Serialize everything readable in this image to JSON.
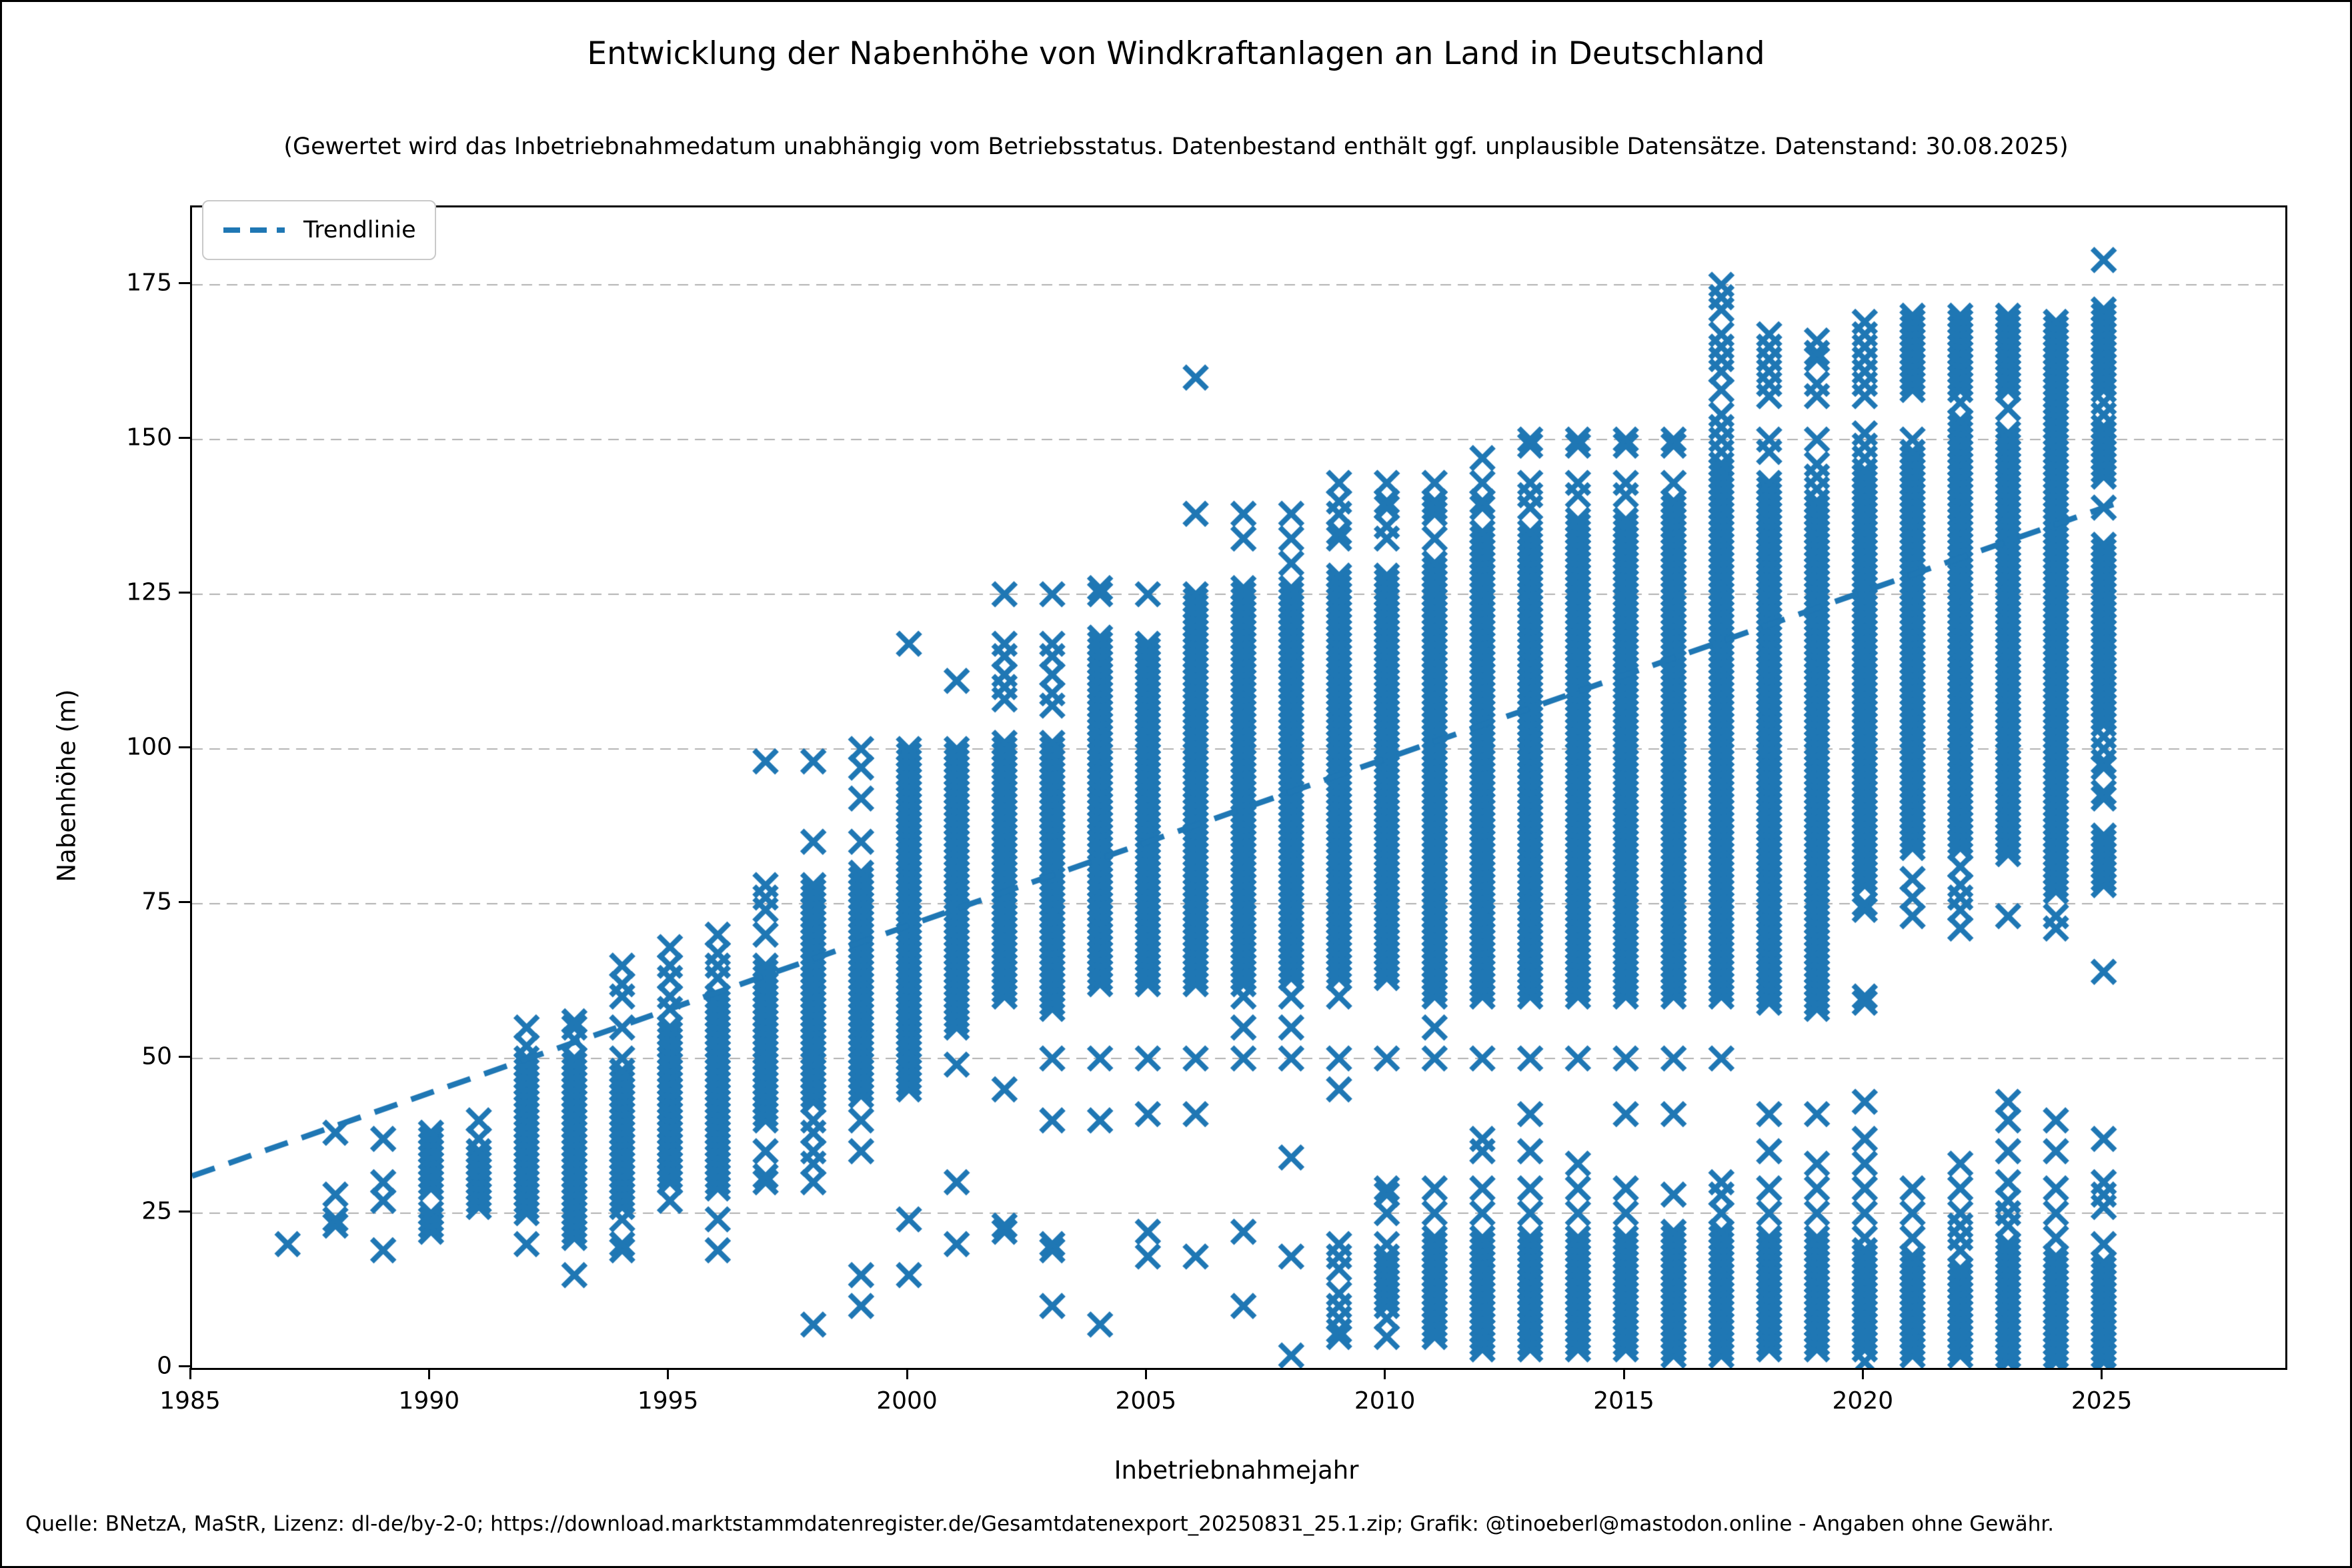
{
  "chart_data": {
    "type": "scatter",
    "title": "Entwicklung der Nabenhöhe von Windkraftanlagen an Land in Deutschland",
    "subtitle": "(Gewertet wird das Inbetriebnahmedatum unabhängig vom Betriebsstatus. Datenbestand enthält ggf. unplausible Datensätze. Datenstand: 30.08.2025)",
    "xlabel": "Inbetriebnahmejahr",
    "ylabel": "Nabenhöhe (m)",
    "marker": "x",
    "marker_color": "#1f77b4",
    "grid_color": "#b0b0b0",
    "grid": "horizontal-dashed",
    "xlim": [
      1985,
      2028.8
    ],
    "ylim": [
      0,
      187.5
    ],
    "xticks": [
      1985,
      1990,
      1995,
      2000,
      2005,
      2010,
      2015,
      2020,
      2025
    ],
    "yticks": [
      0,
      25,
      50,
      75,
      100,
      125,
      150,
      175
    ],
    "legend": {
      "label": "Trendlinie",
      "position": "upper-left",
      "style": "dashed"
    },
    "trendline": {
      "x": [
        1985,
        2025.3
      ],
      "y": [
        31,
        139.8
      ],
      "style": "dashed"
    },
    "series_note": "Per installation year: 'points' are individual hub heights (m); 'bands' are dense overplotted ranges [min,max] of hub heights read from the chart, plotted at band_step spacing.",
    "band_step": 1,
    "series": [
      {
        "year": 1987,
        "bands": [],
        "points": [
          20
        ]
      },
      {
        "year": 1988,
        "bands": [],
        "points": [
          23,
          24,
          28,
          38
        ]
      },
      {
        "year": 1989,
        "bands": [],
        "points": [
          19,
          27,
          30,
          37
        ]
      },
      {
        "year": 1990,
        "bands": [
          [
            29,
            38
          ]
        ],
        "points": [
          22,
          23,
          24,
          25
        ]
      },
      {
        "year": 1991,
        "bands": [
          [
            26,
            35
          ]
        ],
        "points": [
          37,
          40
        ]
      },
      {
        "year": 1992,
        "bands": [
          [
            25,
            50
          ]
        ],
        "points": [
          20,
          52,
          55
        ]
      },
      {
        "year": 1993,
        "bands": [
          [
            21,
            50
          ]
        ],
        "points": [
          15,
          53,
          55,
          56
        ]
      },
      {
        "year": 1994,
        "bands": [
          [
            26,
            48
          ]
        ],
        "points": [
          19,
          20,
          24,
          50,
          55,
          60,
          62,
          65
        ]
      },
      {
        "year": 1995,
        "bands": [
          [
            30,
            55
          ]
        ],
        "points": [
          27,
          58,
          60,
          63,
          65,
          68
        ]
      },
      {
        "year": 1996,
        "bands": [
          [
            29,
            60
          ]
        ],
        "points": [
          19,
          24,
          63,
          65,
          67,
          70
        ]
      },
      {
        "year": 1997,
        "bands": [
          [
            40,
            65
          ]
        ],
        "points": [
          30,
          31,
          35,
          70,
          74,
          76,
          78,
          98
        ]
      },
      {
        "year": 1998,
        "bands": [
          [
            43,
            78
          ]
        ],
        "points": [
          7,
          30,
          33,
          35,
          38,
          40,
          85,
          98
        ]
      },
      {
        "year": 1999,
        "bands": [
          [
            44,
            80
          ]
        ],
        "points": [
          10,
          15,
          35,
          40,
          85,
          92,
          97,
          100
        ]
      },
      {
        "year": 2000,
        "bands": [
          [
            45,
            100
          ]
        ],
        "points": [
          15,
          24,
          117
        ]
      },
      {
        "year": 2001,
        "bands": [
          [
            55,
            100
          ]
        ],
        "points": [
          20,
          30,
          49,
          111
        ]
      },
      {
        "year": 2002,
        "bands": [
          [
            60,
            101
          ]
        ],
        "points": [
          22,
          23,
          45,
          108,
          110,
          112,
          115,
          117,
          125
        ]
      },
      {
        "year": 2003,
        "bands": [
          [
            58,
            101
          ]
        ],
        "points": [
          10,
          19,
          20,
          40,
          50,
          107,
          109,
          112,
          115,
          117,
          125
        ]
      },
      {
        "year": 2004,
        "bands": [
          [
            62,
            118
          ]
        ],
        "points": [
          7,
          40,
          50,
          125,
          126
        ]
      },
      {
        "year": 2005,
        "bands": [
          [
            62,
            117
          ]
        ],
        "points": [
          18,
          22,
          41,
          50,
          125
        ]
      },
      {
        "year": 2006,
        "bands": [
          [
            62,
            125
          ]
        ],
        "points": [
          18,
          41,
          50,
          138,
          160
        ]
      },
      {
        "year": 2007,
        "bands": [
          [
            62,
            126
          ]
        ],
        "points": [
          10,
          22,
          50,
          55,
          60,
          134,
          138
        ]
      },
      {
        "year": 2008,
        "bands": [
          [
            63,
            126
          ]
        ],
        "points": [
          2,
          18,
          34,
          50,
          55,
          60,
          130,
          134,
          138
        ]
      },
      {
        "year": 2009,
        "bands": [
          [
            63,
            128
          ]
        ],
        "points": [
          5,
          6,
          8,
          10,
          12,
          16,
          18,
          20,
          45,
          50,
          60,
          134,
          135,
          138,
          140,
          143
        ]
      },
      {
        "year": 2010,
        "bands": [
          [
            63,
            128
          ],
          [
            10,
            18
          ]
        ],
        "points": [
          5,
          8,
          20,
          25,
          28,
          29,
          50,
          134,
          136,
          139,
          140,
          143
        ]
      },
      {
        "year": 2011,
        "bands": [
          [
            60,
            130
          ],
          [
            5,
            21
          ]
        ],
        "points": [
          25,
          29,
          50,
          55,
          134,
          138,
          139,
          140,
          143
        ]
      },
      {
        "year": 2012,
        "bands": [
          [
            60,
            135
          ],
          [
            3,
            21
          ]
        ],
        "points": [
          25,
          29,
          35,
          37,
          50,
          139,
          140,
          143,
          147
        ]
      },
      {
        "year": 2013,
        "bands": [
          [
            60,
            135
          ],
          [
            3,
            21
          ]
        ],
        "points": [
          25,
          29,
          35,
          41,
          50,
          63,
          139,
          141,
          143,
          149,
          150
        ]
      },
      {
        "year": 2014,
        "bands": [
          [
            60,
            137
          ],
          [
            3,
            21
          ]
        ],
        "points": [
          25,
          29,
          33,
          50,
          141,
          143,
          149,
          150
        ]
      },
      {
        "year": 2015,
        "bands": [
          [
            60,
            137
          ],
          [
            3,
            21
          ]
        ],
        "points": [
          25,
          29,
          41,
          50,
          62,
          141,
          143,
          149,
          150
        ]
      },
      {
        "year": 2016,
        "bands": [
          [
            60,
            140
          ],
          [
            2,
            22
          ]
        ],
        "points": [
          28,
          41,
          50,
          143,
          149,
          150
        ]
      },
      {
        "year": 2017,
        "bands": [
          [
            60,
            145
          ],
          [
            2,
            22
          ]
        ],
        "points": [
          25,
          28,
          30,
          50,
          146,
          148,
          150,
          152,
          154,
          158,
          161,
          163,
          165,
          167,
          171,
          173,
          175
        ]
      },
      {
        "year": 2018,
        "bands": [
          [
            60,
            143
          ],
          [
            3,
            21
          ]
        ],
        "points": [
          25,
          29,
          35,
          41,
          59,
          148,
          150,
          157,
          159,
          161,
          163,
          165,
          167
        ]
      },
      {
        "year": 2019,
        "bands": [
          [
            58,
            140
          ],
          [
            3,
            21
          ]
        ],
        "points": [
          25,
          29,
          33,
          41,
          59,
          60,
          142,
          144,
          146,
          150,
          157,
          159,
          163,
          164,
          166
        ]
      },
      {
        "year": 2020,
        "bands": [
          [
            78,
            145
          ],
          [
            3,
            19
          ]
        ],
        "points": [
          1,
          21,
          25,
          29,
          33,
          37,
          43,
          59,
          60,
          74,
          75,
          147,
          149,
          151,
          157,
          159,
          161,
          163,
          165,
          167,
          169
        ]
      },
      {
        "year": 2021,
        "bands": [
          [
            84,
            148
          ],
          [
            158,
            170
          ],
          [
            2,
            18
          ]
        ],
        "points": [
          21,
          25,
          29,
          73,
          76,
          79,
          150
        ]
      },
      {
        "year": 2022,
        "bands": [
          [
            84,
            153
          ],
          [
            158,
            170
          ],
          [
            2,
            16
          ]
        ],
        "points": [
          19,
          21,
          23,
          25,
          29,
          33,
          71,
          74,
          76,
          78,
          81,
          156
        ]
      },
      {
        "year": 2023,
        "bands": [
          [
            83,
            151
          ],
          [
            158,
            170
          ],
          [
            1,
            20
          ]
        ],
        "points": [
          23,
          25,
          27,
          30,
          35,
          40,
          43,
          73,
          155
        ]
      },
      {
        "year": 2024,
        "bands": [
          [
            77,
            155
          ],
          [
            156,
            169
          ],
          [
            1,
            18
          ]
        ],
        "points": [
          21,
          25,
          29,
          35,
          40,
          71,
          73
        ]
      },
      {
        "year": 2025,
        "bands": [
          [
            105,
            133
          ],
          [
            144,
            152
          ],
          [
            158,
            171
          ],
          [
            78,
            86
          ],
          [
            1,
            17
          ]
        ],
        "points": [
          179,
          156,
          154,
          139,
          104,
          102,
          100,
          98,
          97,
          93,
          92,
          64,
          37,
          30,
          28,
          26,
          20
        ]
      }
    ]
  },
  "source_note": "Quelle: BNetzA, MaStR, Lizenz: dl-de/by-2-0; https://download.marktstammdatenregister.de/Gesamtdatenexport_20250831_25.1.zip; Grafik: @tinoeberl@mastodon.online - Angaben ohne Gewähr."
}
